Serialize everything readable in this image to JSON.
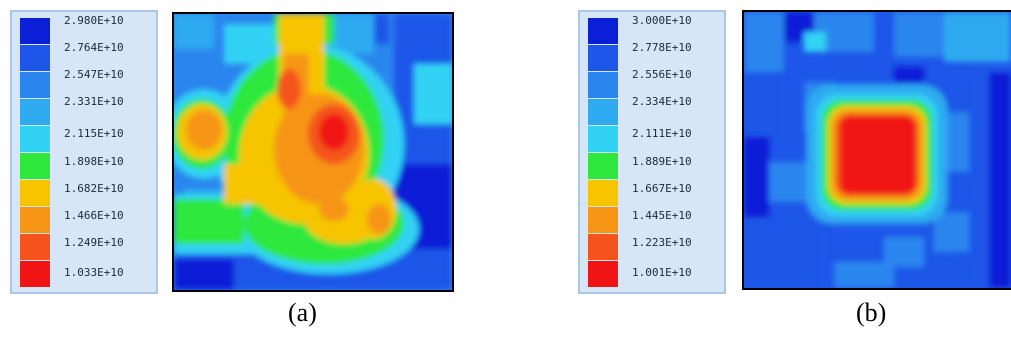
{
  "panels": [
    {
      "id": "a",
      "caption": "(a)",
      "legend_ticks": [
        "2.980E+10",
        "2.764E+10",
        "2.547E+10",
        "2.331E+10",
        "2.115E+10",
        "1.898E+10",
        "1.682E+10",
        "1.466E+10",
        "1.249E+10",
        "1.033E+10"
      ]
    },
    {
      "id": "b",
      "caption": "(b)",
      "legend_ticks": [
        "3.000E+10",
        "2.778E+10",
        "2.556E+10",
        "2.334E+10",
        "2.111E+10",
        "1.889E+10",
        "1.667E+10",
        "1.445E+10",
        "1.223E+10",
        "1.001E+10"
      ]
    }
  ],
  "color_scale": [
    "#0a1fd6",
    "#1d56e8",
    "#2a86ee",
    "#2eaaf0",
    "#32d2f4",
    "#2ee83c",
    "#f7c400",
    "#f69414",
    "#f4541c",
    "#f01414"
  ]
}
